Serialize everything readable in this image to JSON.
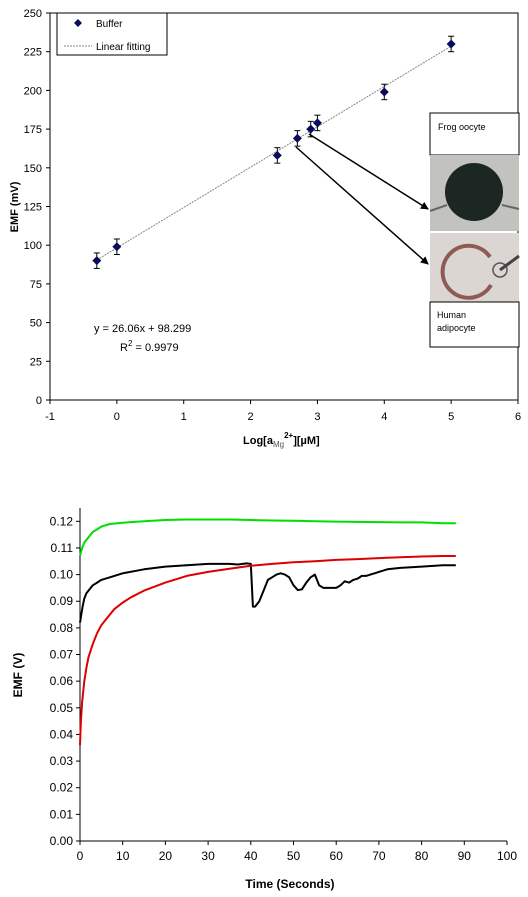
{
  "chart_data": [
    {
      "type": "scatter",
      "ylabel": "EMF (mV)",
      "xlabel_parts": {
        "main": "Log[a",
        "sub": "Mg",
        "sup": "2+",
        "tail": "][µM]"
      },
      "xlim": [
        -1,
        6
      ],
      "ylim": [
        0,
        250
      ],
      "xticks": [
        "-1",
        "0",
        "1",
        "2",
        "3",
        "4",
        "5",
        "6"
      ],
      "yticks": [
        "0",
        "25",
        "50",
        "75",
        "100",
        "125",
        "150",
        "175",
        "200",
        "225",
        "250"
      ],
      "series": [
        {
          "name": "Buffer",
          "color": "#0a0a5e",
          "x": [
            -0.3,
            0,
            2.4,
            2.7,
            2.9,
            3.0,
            4.0,
            5.0
          ],
          "y": [
            90,
            99,
            158,
            169,
            175,
            179,
            199,
            230
          ],
          "err": [
            5,
            5,
            5,
            5,
            5,
            5,
            5,
            5
          ]
        },
        {
          "name": "Linear fitting",
          "fit": {
            "slope": 26.06,
            "intercept": 98.299
          },
          "x_range": [
            -0.3,
            5.0
          ]
        }
      ],
      "legend": "top-left",
      "equation": "y = 26.06x + 98.299",
      "r2_parts": {
        "main": "R",
        "sup": "2",
        "tail": " = 0.9979"
      },
      "insets": {
        "frog_label": "Frog oocyte",
        "human_label_line1": "Human",
        "human_label_line2": "adipocyte"
      }
    },
    {
      "type": "line",
      "ylabel": "EMF (V)",
      "xlabel": "Time (Seconds)",
      "xlim": [
        0,
        100
      ],
      "ylim": [
        0,
        0.125
      ],
      "xticks": [
        "0",
        "10",
        "20",
        "30",
        "40",
        "50",
        "60",
        "70",
        "80",
        "90",
        "100"
      ],
      "yticks": [
        "0.00",
        "0.01",
        "0.02",
        "0.03",
        "0.04",
        "0.05",
        "0.06",
        "0.07",
        "0.08",
        "0.09",
        "0.10",
        "0.11",
        "0.12"
      ],
      "grid": false,
      "series": [
        {
          "color": "#00dd00",
          "x": [
            0,
            0.5,
            1,
            2,
            3,
            4,
            5,
            7,
            10,
            15,
            20,
            25,
            30,
            35,
            40,
            45,
            50,
            55,
            60,
            65,
            70,
            75,
            80,
            85,
            88
          ],
          "y": [
            0.107,
            0.11,
            0.112,
            0.114,
            0.116,
            0.117,
            0.118,
            0.119,
            0.1195,
            0.12,
            0.1205,
            0.1207,
            0.1207,
            0.1207,
            0.1205,
            0.1203,
            0.1202,
            0.12,
            0.1199,
            0.1198,
            0.1197,
            0.1196,
            0.1196,
            0.1193,
            0.1193
          ]
        },
        {
          "color": "#000000",
          "x": [
            0,
            0.3,
            0.6,
            1,
            1.5,
            2,
            3,
            4,
            5,
            7,
            10,
            15,
            20,
            25,
            30,
            35,
            37,
            39,
            40,
            40.5,
            41,
            42,
            43,
            44,
            45,
            46,
            47,
            48,
            49,
            50,
            51,
            52,
            53,
            54,
            55,
            56,
            57,
            58,
            59,
            60,
            61,
            62,
            63,
            64,
            65,
            66,
            67,
            68,
            69,
            70,
            72,
            75,
            80,
            85,
            88
          ],
          "y": [
            0.082,
            0.085,
            0.088,
            0.091,
            0.093,
            0.094,
            0.096,
            0.097,
            0.098,
            0.099,
            0.1005,
            0.102,
            0.103,
            0.1035,
            0.104,
            0.104,
            0.1038,
            0.1042,
            0.104,
            0.088,
            0.088,
            0.09,
            0.094,
            0.098,
            0.099,
            0.1,
            0.1005,
            0.1,
            0.099,
            0.096,
            0.0942,
            0.0945,
            0.097,
            0.099,
            0.1,
            0.096,
            0.095,
            0.095,
            0.095,
            0.095,
            0.096,
            0.0975,
            0.097,
            0.098,
            0.0985,
            0.0995,
            0.0995,
            0.1,
            0.1005,
            0.101,
            0.102,
            0.1025,
            0.103,
            0.1035,
            0.1035
          ]
        },
        {
          "color": "#dd0000",
          "x": [
            0,
            0.2,
            0.5,
            1,
            1.5,
            2,
            3,
            4,
            5,
            6,
            8,
            10,
            12,
            15,
            20,
            25,
            30,
            35,
            40,
            45,
            50,
            55,
            60,
            65,
            70,
            75,
            80,
            85,
            88
          ],
          "y": [
            0.036,
            0.045,
            0.052,
            0.06,
            0.065,
            0.069,
            0.074,
            0.078,
            0.081,
            0.083,
            0.087,
            0.0895,
            0.0915,
            0.094,
            0.097,
            0.0995,
            0.101,
            0.1022,
            0.1033,
            0.104,
            0.1046,
            0.105,
            0.1055,
            0.1058,
            0.1062,
            0.1065,
            0.1068,
            0.107,
            0.107
          ]
        }
      ]
    }
  ]
}
